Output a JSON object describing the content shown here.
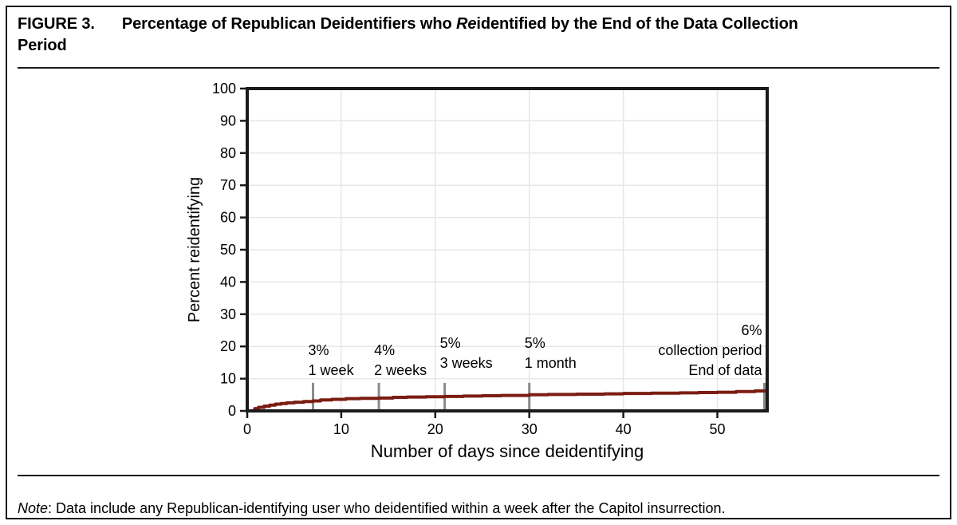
{
  "header": {
    "label": "FIGURE 3.",
    "title_pre": "Percentage of Republican Deidentifiers who ",
    "title_italic": "Re",
    "title_post": "identified by the End of the Data Collection",
    "title_line2": "Period"
  },
  "note": {
    "label": "Note",
    "text": ": Data include any Republican-identifying user who deidentified within a week after the Capitol insurrection."
  },
  "chart_data": {
    "type": "line",
    "subtype": "step",
    "title": "",
    "xlabel": "Number of days since deidentifying",
    "ylabel": "Percent reidentifying",
    "xlim": [
      0,
      55.3
    ],
    "ylim": [
      0,
      100
    ],
    "xticks": [
      0,
      10,
      20,
      30,
      40,
      50
    ],
    "yticks": [
      0,
      10,
      20,
      30,
      40,
      50,
      60,
      70,
      80,
      90,
      100
    ],
    "grid": true,
    "legend": "none",
    "grid_color": "#E7E7E7",
    "line_color": "#7B1D12",
    "axis_color": "#1a1a1a",
    "reference_tick_color": "#8A8A8A",
    "series": [
      {
        "name": "Percent reidentifying",
        "points": [
          [
            0,
            0
          ],
          [
            0.8,
            0.7
          ],
          [
            1.2,
            1.1
          ],
          [
            1.8,
            1.5
          ],
          [
            2.4,
            1.8
          ],
          [
            3,
            2.1
          ],
          [
            3.6,
            2.3
          ],
          [
            4.2,
            2.5
          ],
          [
            5,
            2.7
          ],
          [
            6,
            2.9
          ],
          [
            7,
            3.1
          ],
          [
            7.8,
            3.4
          ],
          [
            9,
            3.6
          ],
          [
            10.5,
            3.8
          ],
          [
            12,
            3.9
          ],
          [
            14,
            4.0
          ],
          [
            15.5,
            4.2
          ],
          [
            17,
            4.3
          ],
          [
            19,
            4.4
          ],
          [
            21,
            4.5
          ],
          [
            23,
            4.6
          ],
          [
            25,
            4.7
          ],
          [
            27,
            4.8
          ],
          [
            30,
            5.0
          ],
          [
            32,
            5.1
          ],
          [
            35,
            5.2
          ],
          [
            38,
            5.3
          ],
          [
            40,
            5.4
          ],
          [
            43,
            5.5
          ],
          [
            46,
            5.6
          ],
          [
            48,
            5.7
          ],
          [
            50,
            5.8
          ],
          [
            52,
            6.0
          ],
          [
            54,
            6.2
          ],
          [
            55.3,
            6.3
          ]
        ]
      }
    ],
    "reference_days": [
      7,
      14,
      21,
      30,
      55
    ],
    "annotations": [
      {
        "day": 7,
        "lines": [
          "1 week",
          "3%"
        ],
        "align": "start",
        "raise": 0
      },
      {
        "day": 14,
        "lines": [
          "2 weeks",
          "4%"
        ],
        "align": "start",
        "raise": 0
      },
      {
        "day": 21,
        "lines": [
          "3 weeks",
          "5%"
        ],
        "align": "start",
        "raise": 9
      },
      {
        "day": 30,
        "lines": [
          "1 month",
          "5%"
        ],
        "align": "start",
        "raise": 9
      },
      {
        "day": 55,
        "lines": [
          "End of data",
          "collection period",
          "6%"
        ],
        "align": "end",
        "raise": 0
      }
    ]
  }
}
